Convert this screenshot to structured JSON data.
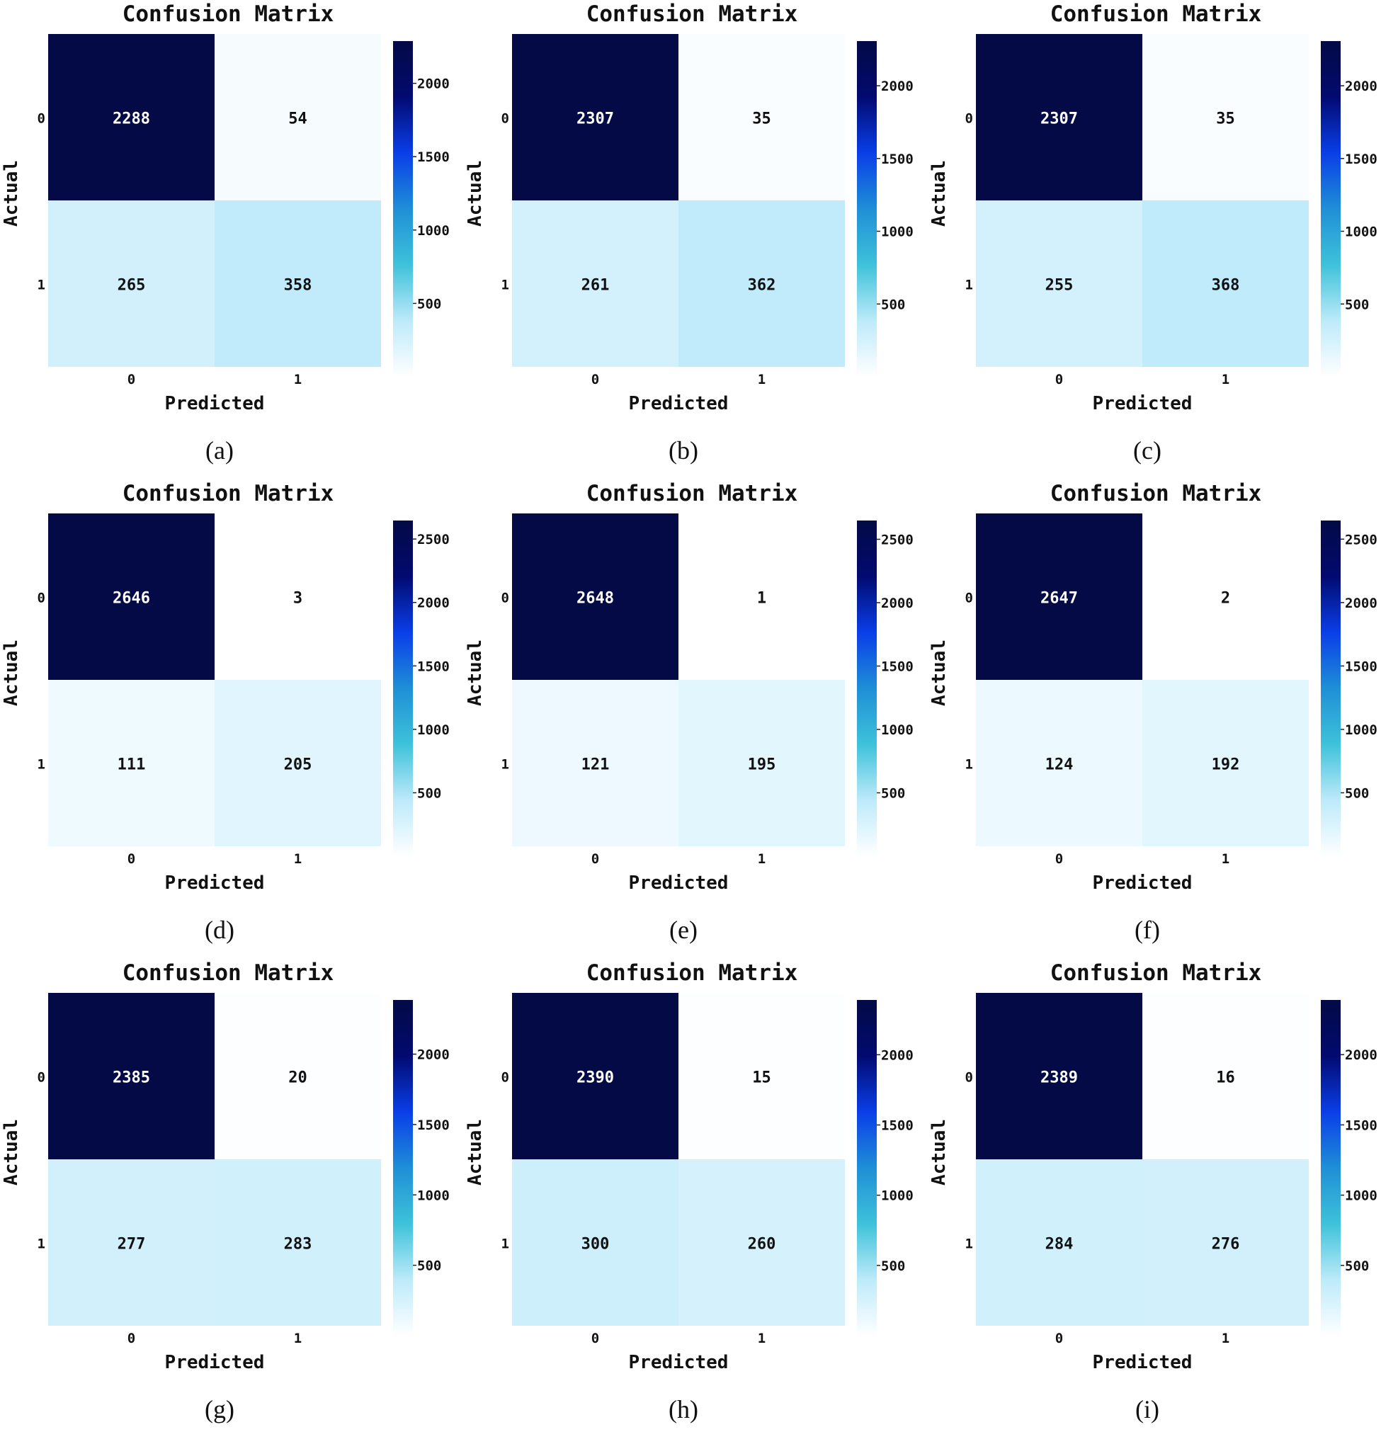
{
  "chart_data": [
    {
      "panel": "(a)",
      "type": "heatmap",
      "title": "Confusion Matrix",
      "xlabel": "Predicted",
      "ylabel": "Actual",
      "x_categories": [
        "0",
        "1"
      ],
      "y_categories": [
        "0",
        "1"
      ],
      "matrix": [
        [
          2288,
          54
        ],
        [
          265,
          358
        ]
      ],
      "colorbar": {
        "min": 0,
        "max": 2288,
        "ticks": [
          500,
          1000,
          1500,
          2000
        ]
      }
    },
    {
      "panel": "(b)",
      "type": "heatmap",
      "title": "Confusion Matrix",
      "xlabel": "Predicted",
      "ylabel": "Actual",
      "x_categories": [
        "0",
        "1"
      ],
      "y_categories": [
        "0",
        "1"
      ],
      "matrix": [
        [
          2307,
          35
        ],
        [
          261,
          362
        ]
      ],
      "colorbar": {
        "min": 0,
        "max": 2307,
        "ticks": [
          500,
          1000,
          1500,
          2000
        ]
      }
    },
    {
      "panel": "(c)",
      "type": "heatmap",
      "title": "Confusion Matrix",
      "xlabel": "Predicted",
      "ylabel": "Actual",
      "x_categories": [
        "0",
        "1"
      ],
      "y_categories": [
        "0",
        "1"
      ],
      "matrix": [
        [
          2307,
          35
        ],
        [
          255,
          368
        ]
      ],
      "colorbar": {
        "min": 0,
        "max": 2307,
        "ticks": [
          500,
          1000,
          1500,
          2000
        ]
      }
    },
    {
      "panel": "(d)",
      "type": "heatmap",
      "title": "Confusion Matrix",
      "xlabel": "Predicted",
      "ylabel": "Actual",
      "x_categories": [
        "0",
        "1"
      ],
      "y_categories": [
        "0",
        "1"
      ],
      "matrix": [
        [
          2646,
          3
        ],
        [
          111,
          205
        ]
      ],
      "colorbar": {
        "min": 0,
        "max": 2646,
        "ticks": [
          500,
          1000,
          1500,
          2000,
          2500
        ]
      }
    },
    {
      "panel": "(e)",
      "type": "heatmap",
      "title": "Confusion Matrix",
      "xlabel": "Predicted",
      "ylabel": "Actual",
      "x_categories": [
        "0",
        "1"
      ],
      "y_categories": [
        "0",
        "1"
      ],
      "matrix": [
        [
          2648,
          1
        ],
        [
          121,
          195
        ]
      ],
      "colorbar": {
        "min": 0,
        "max": 2648,
        "ticks": [
          500,
          1000,
          1500,
          2000,
          2500
        ]
      }
    },
    {
      "panel": "(f)",
      "type": "heatmap",
      "title": "Confusion Matrix",
      "xlabel": "Predicted",
      "ylabel": "Actual",
      "x_categories": [
        "0",
        "1"
      ],
      "y_categories": [
        "0",
        "1"
      ],
      "matrix": [
        [
          2647,
          2
        ],
        [
          124,
          192
        ]
      ],
      "colorbar": {
        "min": 0,
        "max": 2647,
        "ticks": [
          500,
          1000,
          1500,
          2000,
          2500
        ]
      }
    },
    {
      "panel": "(g)",
      "type": "heatmap",
      "title": "Confusion Matrix",
      "xlabel": "Predicted",
      "ylabel": "Actual",
      "x_categories": [
        "0",
        "1"
      ],
      "y_categories": [
        "0",
        "1"
      ],
      "matrix": [
        [
          2385,
          20
        ],
        [
          277,
          283
        ]
      ],
      "colorbar": {
        "min": 0,
        "max": 2385,
        "ticks": [
          500,
          1000,
          1500,
          2000
        ]
      }
    },
    {
      "panel": "(h)",
      "type": "heatmap",
      "title": "Confusion Matrix",
      "xlabel": "Predicted",
      "ylabel": "Actual",
      "x_categories": [
        "0",
        "1"
      ],
      "y_categories": [
        "0",
        "1"
      ],
      "matrix": [
        [
          2390,
          15
        ],
        [
          300,
          260
        ]
      ],
      "colorbar": {
        "min": 0,
        "max": 2390,
        "ticks": [
          500,
          1000,
          1500,
          2000
        ]
      }
    },
    {
      "panel": "(i)",
      "type": "heatmap",
      "title": "Confusion Matrix",
      "xlabel": "Predicted",
      "ylabel": "Actual",
      "x_categories": [
        "0",
        "1"
      ],
      "y_categories": [
        "0",
        "1"
      ],
      "matrix": [
        [
          2389,
          16
        ],
        [
          284,
          276
        ]
      ],
      "colorbar": {
        "min": 0,
        "max": 2389,
        "ticks": [
          500,
          1000,
          1500,
          2000
        ]
      }
    }
  ],
  "colors": {
    "colormap": [
      "#ffffff",
      "#bdeafa",
      "#3ec2da",
      "#1f8fd6",
      "#0a3ee8",
      "#020a70",
      "#030a45"
    ],
    "text_dark": "#111111",
    "text_light": "#ffffff"
  }
}
